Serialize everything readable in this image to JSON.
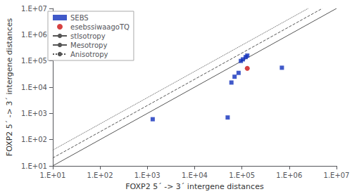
{
  "chart_data": {
    "type": "scatter",
    "xlabel": "FOXP2 5´ -> 3´ intergene distances",
    "ylabel": "FOXP2 5´ -> 3´ intergene distances",
    "log": true,
    "grid": false,
    "legend": "upper left",
    "xlim": [
      10,
      10000000
    ],
    "ylim": [
      10,
      10000000
    ],
    "xticks": [
      {
        "value": 10,
        "label": "1.E+01"
      },
      {
        "value": 100,
        "label": "1.E+02"
      },
      {
        "value": 1000,
        "label": "1.E+03"
      },
      {
        "value": 10000,
        "label": "1.E+04"
      },
      {
        "value": 100000,
        "label": "1.E+05"
      },
      {
        "value": 1000000,
        "label": "1.E+06"
      },
      {
        "value": 10000000,
        "label": "1.E+07"
      }
    ],
    "yticks": [
      {
        "value": 10,
        "label": "1.E+01"
      },
      {
        "value": 100,
        "label": "1.E+02"
      },
      {
        "value": 1000,
        "label": "1.E+03"
      },
      {
        "value": 10000,
        "label": "1.E+04"
      },
      {
        "value": 100000,
        "label": "1.E+05"
      },
      {
        "value": 1000000,
        "label": "1.E+06"
      },
      {
        "value": 10000000,
        "label": "1.E+07"
      }
    ],
    "series": [
      {
        "name": "SEBS",
        "type": "scatter",
        "marker": "square",
        "color": "#1030bb",
        "x": [
          1300,
          50000,
          70000,
          85000,
          95000,
          105000,
          120000,
          130000,
          60000,
          700000
        ],
        "values": [
          600,
          700,
          25000,
          35000,
          100000,
          115000,
          140000,
          160000,
          15000,
          55000
        ]
      },
      {
        "name": "esebssiwaagoTQ",
        "type": "scatter",
        "marker": "circle",
        "color": "#cc1111",
        "x": [
          130000
        ],
        "values": [
          52000
        ]
      },
      {
        "name": "stIsotropy",
        "type": "line",
        "line_style": "solid",
        "color": "#555555",
        "x": [
          10,
          10000000
        ],
        "values": [
          10,
          10000000
        ]
      },
      {
        "name": "Mesotropy",
        "type": "line",
        "line_style": "dashed",
        "color": "#555555",
        "x": [
          10,
          5011872.336272722
        ],
        "values": [
          19.952623149688797,
          10000000
        ]
      },
      {
        "name": "Anisotropy",
        "type": "line",
        "line_style": "dotted",
        "color": "#555555",
        "x": [
          10,
          2511886.4315095805
        ],
        "values": [
          39.81071705534973,
          10000000
        ]
      }
    ]
  }
}
